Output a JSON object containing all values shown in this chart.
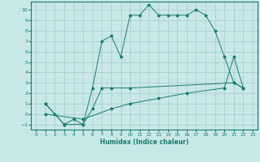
{
  "xlabel": "Humidex (Indice chaleur)",
  "xlim": [
    -0.5,
    23.5
  ],
  "ylim": [
    -1.5,
    10.8
  ],
  "xticks": [
    0,
    1,
    2,
    3,
    4,
    5,
    6,
    7,
    8,
    9,
    10,
    11,
    12,
    13,
    14,
    15,
    16,
    17,
    18,
    19,
    20,
    21,
    22,
    23
  ],
  "yticks": [
    -1,
    0,
    1,
    2,
    3,
    4,
    5,
    6,
    7,
    8,
    9,
    10
  ],
  "line_color": "#1a7a6e",
  "bg_color": "#c8e8e8",
  "grid_color": "#aacece",
  "line1_x": [
    1,
    2,
    3,
    4,
    5,
    6,
    7,
    8,
    9,
    10,
    11,
    12,
    13,
    14,
    15,
    16,
    17,
    18,
    19,
    20,
    21,
    22
  ],
  "line1_y": [
    1,
    0,
    -1,
    -0.5,
    -1,
    2.5,
    7,
    7.5,
    5.5,
    9.5,
    9.5,
    10.5,
    9.5,
    9.5,
    9.5,
    9.5,
    10,
    9.5,
    8,
    5.5,
    3,
    2.5
  ],
  "line2_x": [
    1,
    3,
    5,
    6,
    7,
    8,
    10,
    21,
    22
  ],
  "line2_y": [
    1,
    -1,
    -1,
    0.5,
    2.5,
    2.5,
    2.5,
    3,
    2.5
  ],
  "line3_x": [
    1,
    5,
    8,
    10,
    13,
    16,
    20,
    21,
    22
  ],
  "line3_y": [
    0,
    -0.5,
    0.5,
    1.0,
    1.5,
    2.0,
    2.5,
    5.5,
    2.5
  ]
}
